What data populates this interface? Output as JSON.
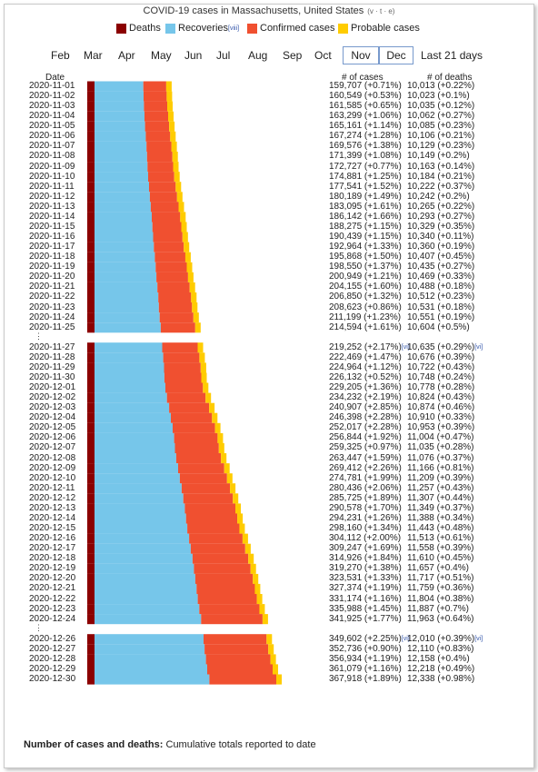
{
  "title": "COVID-19 cases in Massachusetts, United States",
  "title_vte": "(v · t · e)",
  "legend": [
    {
      "label": "Deaths",
      "color": "#8b0000"
    },
    {
      "label": "Recoveries",
      "ref": "[viii]",
      "color": "#76c6ea"
    },
    {
      "label": "Confirmed cases",
      "color": "#f05030"
    },
    {
      "label": "Probable cases",
      "color": "#ffcc00"
    }
  ],
  "months": [
    "Feb",
    "Mar",
    "Apr",
    "May",
    "Jun",
    "Jul",
    "Aug",
    "Sep",
    "Oct",
    "Nov",
    "Dec",
    "Last 21 days"
  ],
  "headers": {
    "date": "Date",
    "cases": "# of cases",
    "deaths": "# of deaths"
  },
  "footer": {
    "bold": "Number of cases and deaths:",
    "rest": " Cumulative totals reported to date"
  },
  "chart_data": {
    "type": "bar",
    "orientation": "horizontal-stacked",
    "series_order": [
      "Deaths",
      "Recoveries",
      "Confirmed cases",
      "Probable cases"
    ],
    "rows": [
      {
        "date": "2020-11-01",
        "cases": "159,707 (+0.71%)",
        "deaths": "10,013 (+0.22%)",
        "case_count": 159707
      },
      {
        "date": "2020-11-02",
        "cases": "160,549 (+0.53%)",
        "deaths": "10,023 (+0.1%)",
        "case_count": 160549
      },
      {
        "date": "2020-11-03",
        "cases": "161,585 (+0.65%)",
        "deaths": "10,035 (+0.12%)",
        "case_count": 161585
      },
      {
        "date": "2020-11-04",
        "cases": "163,299 (+1.06%)",
        "deaths": "10,062 (+0.27%)",
        "case_count": 163299
      },
      {
        "date": "2020-11-05",
        "cases": "165,161 (+1.14%)",
        "deaths": "10,085 (+0.23%)",
        "case_count": 165161
      },
      {
        "date": "2020-11-06",
        "cases": "167,274 (+1.28%)",
        "deaths": "10,106 (+0.21%)",
        "case_count": 167274
      },
      {
        "date": "2020-11-07",
        "cases": "169,576 (+1.38%)",
        "deaths": "10,129 (+0.23%)",
        "case_count": 169576
      },
      {
        "date": "2020-11-08",
        "cases": "171,399 (+1.08%)",
        "deaths": "10,149 (+0.2%)",
        "case_count": 171399
      },
      {
        "date": "2020-11-09",
        "cases": "172,727 (+0.77%)",
        "deaths": "10,163 (+0.14%)",
        "case_count": 172727
      },
      {
        "date": "2020-11-10",
        "cases": "174,881 (+1.25%)",
        "deaths": "10,184 (+0.21%)",
        "case_count": 174881
      },
      {
        "date": "2020-11-11",
        "cases": "177,541 (+1.52%)",
        "deaths": "10,222 (+0.37%)",
        "case_count": 177541
      },
      {
        "date": "2020-11-12",
        "cases": "180,189 (+1.49%)",
        "deaths": "10,242 (+0.2%)",
        "case_count": 180189
      },
      {
        "date": "2020-11-13",
        "cases": "183,095 (+1.61%)",
        "deaths": "10,265 (+0.22%)",
        "case_count": 183095
      },
      {
        "date": "2020-11-14",
        "cases": "186,142 (+1.66%)",
        "deaths": "10,293 (+0.27%)",
        "case_count": 186142
      },
      {
        "date": "2020-11-15",
        "cases": "188,275 (+1.15%)",
        "deaths": "10,329 (+0.35%)",
        "case_count": 188275
      },
      {
        "date": "2020-11-16",
        "cases": "190,439 (+1.15%)",
        "deaths": "10,340 (+0.11%)",
        "case_count": 190439
      },
      {
        "date": "2020-11-17",
        "cases": "192,964 (+1.33%)",
        "deaths": "10,360 (+0.19%)",
        "case_count": 192964
      },
      {
        "date": "2020-11-18",
        "cases": "195,868 (+1.50%)",
        "deaths": "10,407 (+0.45%)",
        "case_count": 195868
      },
      {
        "date": "2020-11-19",
        "cases": "198,550 (+1.37%)",
        "deaths": "10,435 (+0.27%)",
        "case_count": 198550
      },
      {
        "date": "2020-11-20",
        "cases": "200,949 (+1.21%)",
        "deaths": "10,469 (+0.33%)",
        "case_count": 200949
      },
      {
        "date": "2020-11-21",
        "cases": "204,155 (+1.60%)",
        "deaths": "10,488 (+0.18%)",
        "case_count": 204155
      },
      {
        "date": "2020-11-22",
        "cases": "206,850 (+1.32%)",
        "deaths": "10,512 (+0.23%)",
        "case_count": 206850
      },
      {
        "date": "2020-11-23",
        "cases": "208,623 (+0.86%)",
        "deaths": "10,531 (+0.18%)",
        "case_count": 208623
      },
      {
        "date": "2020-11-24",
        "cases": "211,199 (+1.23%)",
        "deaths": "10,551 (+0.19%)",
        "case_count": 211199
      },
      {
        "date": "2020-11-25",
        "cases": "214,594 (+1.61%)",
        "deaths": "10,604 (+0.5%)",
        "case_count": 214594
      },
      {
        "gap": true
      },
      {
        "date": "2020-11-27",
        "cases": "219,252 (+2.17%)",
        "cases_ref": "[vi]",
        "deaths": "10,635 (+0.29%)",
        "deaths_ref": "[vi]",
        "case_count": 219252
      },
      {
        "date": "2020-11-28",
        "cases": "222,469 (+1.47%)",
        "deaths": "10,676 (+0.39%)",
        "case_count": 222469
      },
      {
        "date": "2020-11-29",
        "cases": "224,964 (+1.12%)",
        "deaths": "10,722 (+0.43%)",
        "case_count": 224964
      },
      {
        "date": "2020-11-30",
        "cases": "226,132 (+0.52%)",
        "deaths": "10,748 (+0.24%)",
        "case_count": 226132
      },
      {
        "date": "2020-12-01",
        "cases": "229,205 (+1.36%)",
        "deaths": "10,778 (+0.28%)",
        "case_count": 229205
      },
      {
        "date": "2020-12-02",
        "cases": "234,232 (+2.19%)",
        "deaths": "10,824 (+0.43%)",
        "case_count": 234232
      },
      {
        "date": "2020-12-03",
        "cases": "240,907 (+2.85%)",
        "deaths": "10,874 (+0.46%)",
        "case_count": 240907
      },
      {
        "date": "2020-12-04",
        "cases": "246,398 (+2.28%)",
        "deaths": "10,910 (+0.33%)",
        "case_count": 246398
      },
      {
        "date": "2020-12-05",
        "cases": "252,017 (+2.28%)",
        "deaths": "10,953 (+0.39%)",
        "case_count": 252017
      },
      {
        "date": "2020-12-06",
        "cases": "256,844 (+1.92%)",
        "deaths": "11,004 (+0.47%)",
        "case_count": 256844
      },
      {
        "date": "2020-12-07",
        "cases": "259,325 (+0.97%)",
        "deaths": "11,035 (+0.28%)",
        "case_count": 259325
      },
      {
        "date": "2020-12-08",
        "cases": "263,447 (+1.59%)",
        "deaths": "11,076 (+0.37%)",
        "case_count": 263447
      },
      {
        "date": "2020-12-09",
        "cases": "269,412 (+2.26%)",
        "deaths": "11,166 (+0.81%)",
        "case_count": 269412
      },
      {
        "date": "2020-12-10",
        "cases": "274,781 (+1.99%)",
        "deaths": "11,209 (+0.39%)",
        "case_count": 274781
      },
      {
        "date": "2020-12-11",
        "cases": "280,436 (+2.06%)",
        "deaths": "11,257 (+0.43%)",
        "case_count": 280436
      },
      {
        "date": "2020-12-12",
        "cases": "285,725 (+1.89%)",
        "deaths": "11,307 (+0.44%)",
        "case_count": 285725
      },
      {
        "date": "2020-12-13",
        "cases": "290,578 (+1.70%)",
        "deaths": "11,349 (+0.37%)",
        "case_count": 290578
      },
      {
        "date": "2020-12-14",
        "cases": "294,231 (+1.26%)",
        "deaths": "11,388 (+0.34%)",
        "case_count": 294231
      },
      {
        "date": "2020-12-15",
        "cases": "298,160 (+1.34%)",
        "deaths": "11,443 (+0.48%)",
        "case_count": 298160
      },
      {
        "date": "2020-12-16",
        "cases": "304,112 (+2.00%)",
        "deaths": "11,513 (+0.61%)",
        "case_count": 304112
      },
      {
        "date": "2020-12-17",
        "cases": "309,247 (+1.69%)",
        "deaths": "11,558 (+0.39%)",
        "case_count": 309247
      },
      {
        "date": "2020-12-18",
        "cases": "314,926 (+1.84%)",
        "deaths": "11,610 (+0.45%)",
        "case_count": 314926
      },
      {
        "date": "2020-12-19",
        "cases": "319,270 (+1.38%)",
        "deaths": "11,657 (+0.4%)",
        "case_count": 319270
      },
      {
        "date": "2020-12-20",
        "cases": "323,531 (+1.33%)",
        "deaths": "11,717 (+0.51%)",
        "case_count": 323531
      },
      {
        "date": "2020-12-21",
        "cases": "327,374 (+1.19%)",
        "deaths": "11,759 (+0.36%)",
        "case_count": 327374
      },
      {
        "date": "2020-12-22",
        "cases": "331,174 (+1.16%)",
        "deaths": "11,804 (+0.38%)",
        "case_count": 331174
      },
      {
        "date": "2020-12-23",
        "cases": "335,988 (+1.45%)",
        "deaths": "11,887 (+0.7%)",
        "case_count": 335988
      },
      {
        "date": "2020-12-24",
        "cases": "341,925 (+1.77%)",
        "deaths": "11,963 (+0.64%)",
        "case_count": 341925
      },
      {
        "gap": true
      },
      {
        "date": "2020-12-26",
        "cases": "349,602 (+2.25%)",
        "cases_ref": "[vi]",
        "deaths": "12,010 (+0.39%)",
        "deaths_ref": "[vi]",
        "case_count": 349602
      },
      {
        "date": "2020-12-27",
        "cases": "352,736 (+0.90%)",
        "deaths": "12,110 (+0.83%)",
        "case_count": 352736
      },
      {
        "date": "2020-12-28",
        "cases": "356,934 (+1.19%)",
        "deaths": "12,158 (+0.4%)",
        "case_count": 356934
      },
      {
        "date": "2020-12-29",
        "cases": "361,079 (+1.16%)",
        "deaths": "12,218 (+0.49%)",
        "case_count": 361079
      },
      {
        "date": "2020-12-30",
        "cases": "367,918 (+1.89%)",
        "deaths": "12,338 (+0.98%)",
        "case_count": 367918
      }
    ]
  }
}
